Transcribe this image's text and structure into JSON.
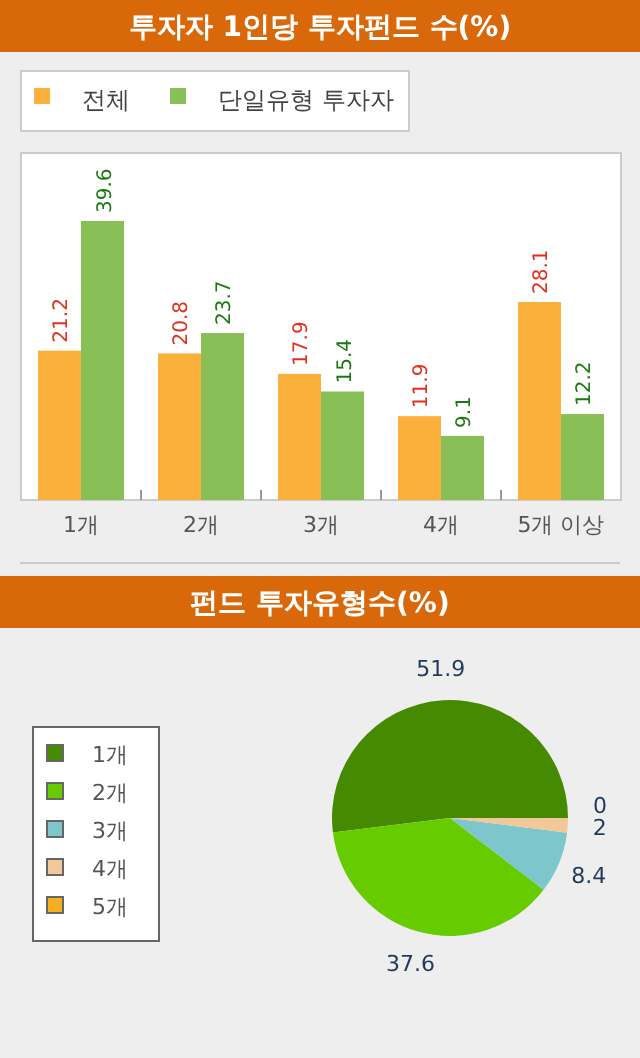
{
  "chart_data": [
    {
      "type": "bar",
      "title": "투자자 1인당 투자펀드 수(%)",
      "categories": [
        "1개",
        "2개",
        "3개",
        "4개",
        "5개 이상"
      ],
      "series": [
        {
          "name": "전체",
          "color": "#fbb03b",
          "values": [
            21.2,
            20.8,
            17.9,
            11.9,
            28.1
          ]
        },
        {
          "name": "단일유형 투자자",
          "color": "#88c057",
          "values": [
            39.6,
            23.7,
            15.4,
            9.1,
            12.2
          ]
        }
      ],
      "data_labels": true,
      "legend": "top left",
      "grid": false
    },
    {
      "type": "pie",
      "title": "펀드 투자유형수(%)",
      "categories": [
        "1개",
        "2개",
        "3개",
        "4개",
        "5개"
      ],
      "values": [
        51.9,
        37.6,
        8.4,
        2,
        0
      ],
      "colors": [
        "#458a00",
        "#66cc00",
        "#7cc6cc",
        "#f0c89a",
        "#f0b020"
      ],
      "value_labels": [
        "51.9",
        "37.6",
        "8.4",
        "2",
        "0"
      ],
      "legend": "left"
    }
  ]
}
